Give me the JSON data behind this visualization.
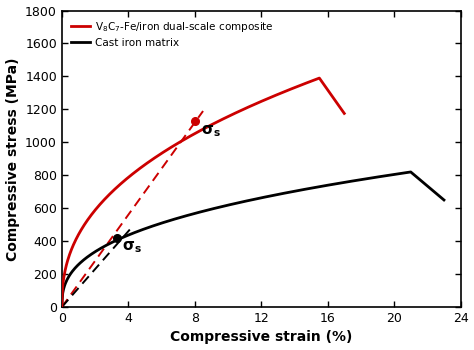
{
  "xlabel": "Compressive strain (%)",
  "ylabel": "Compressive stress (MPa)",
  "xlim": [
    0,
    24
  ],
  "ylim": [
    0,
    1800
  ],
  "xticks": [
    0,
    4,
    8,
    12,
    16,
    20,
    24
  ],
  "yticks": [
    0,
    200,
    400,
    600,
    800,
    1000,
    1200,
    1400,
    1600,
    1800
  ],
  "legend1_label": "V$_8$C$_{7}$-Fe/iron dual-scale composite",
  "legend2_label": "Cast iron matrix",
  "red_color": "#cc0000",
  "black_color": "#000000",
  "sigma_s_red_x": 8.0,
  "sigma_s_red_y": 1130,
  "sigma_s_black_x": 3.3,
  "sigma_s_black_y": 420,
  "background_color": "#ffffff"
}
